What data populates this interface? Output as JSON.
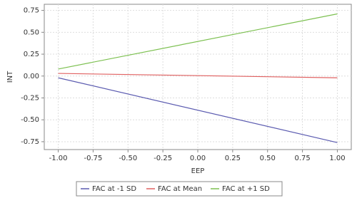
{
  "chart_data": {
    "type": "line",
    "x_label": "EEP",
    "y_label": "INT",
    "x": [
      -1,
      1
    ],
    "series": [
      {
        "name": "FAC at -1 SD",
        "color": "#5b5bb0",
        "values": [
          -0.02,
          -0.76
        ]
      },
      {
        "name": "FAC at Mean",
        "color": "#e06060",
        "values": [
          0.03,
          -0.02
        ]
      },
      {
        "name": "FAC at +1 SD",
        "color": "#7cc050",
        "values": [
          0.08,
          0.71
        ]
      }
    ],
    "xlim": [
      -1.1,
      1.1
    ],
    "xticks": [
      {
        "value": -1,
        "label": "-1.00"
      },
      {
        "value": -0.75,
        "label": "-0.75"
      },
      {
        "value": -0.5,
        "label": "-0.50"
      },
      {
        "value": -0.25,
        "label": "-0.25"
      },
      {
        "value": 0,
        "label": "0.00"
      },
      {
        "value": 0.25,
        "label": "0.25"
      },
      {
        "value": 0.5,
        "label": "0.50"
      },
      {
        "value": 0.75,
        "label": "0.75"
      },
      {
        "value": 1,
        "label": "1.00"
      }
    ],
    "ylim": [
      -0.84,
      0.82
    ],
    "yticks": [
      {
        "value": -0.75,
        "label": "-0.75"
      },
      {
        "value": -0.5,
        "label": "-0.50"
      },
      {
        "value": -0.25,
        "label": "-0.25"
      },
      {
        "value": 0,
        "label": "0.00"
      },
      {
        "value": 0.25,
        "label": "0.25"
      },
      {
        "value": 0.5,
        "label": "0.50"
      },
      {
        "value": 0.75,
        "label": "0.75"
      }
    ],
    "grid": true,
    "legend": "bottom"
  }
}
